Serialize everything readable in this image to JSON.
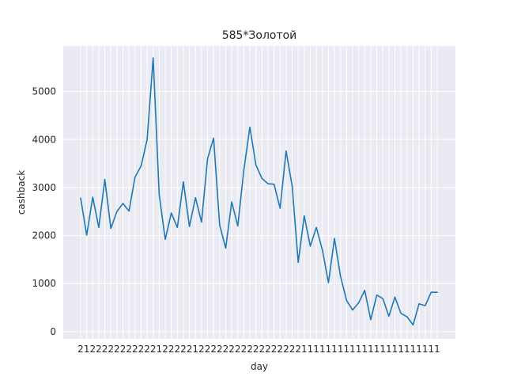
{
  "chart_data": {
    "type": "line",
    "title": "585*Золотой",
    "xlabel": "day",
    "ylabel": "cashback",
    "ylim": [
      -150,
      5950
    ],
    "yticks": [
      0,
      1000,
      2000,
      3000,
      4000,
      5000
    ],
    "grid": true,
    "series_color": "#1f77b4",
    "background_color": "#eaeaf2",
    "x": [
      "2",
      "1",
      "2",
      "2",
      "2",
      "2",
      "2",
      "2",
      "2",
      "2",
      "2",
      "2",
      "2",
      "1",
      "2",
      "2",
      "2",
      "2",
      "2",
      "1",
      "2",
      "2",
      "2",
      "2",
      "2",
      "2",
      "2",
      "2",
      "2",
      "2",
      "2",
      "2",
      "2",
      "2",
      "2",
      "2",
      "2",
      "1",
      "1",
      "1",
      "1",
      "1",
      "1",
      "1",
      "1",
      "1",
      "1",
      "1",
      "1",
      "1",
      "1",
      "1",
      "1",
      "1",
      "1",
      "1",
      "1",
      "1",
      "1",
      "1"
    ],
    "values": [
      2780,
      2010,
      2800,
      2170,
      3170,
      2150,
      2500,
      2670,
      2510,
      3220,
      3450,
      4000,
      5700,
      2850,
      1920,
      2470,
      2170,
      3120,
      2190,
      2790,
      2280,
      3600,
      4030,
      2220,
      1740,
      2700,
      2200,
      3360,
      4260,
      3470,
      3190,
      3080,
      3070,
      2570,
      3760,
      3030,
      1440,
      2410,
      1780,
      2170,
      1700,
      1020,
      1940,
      1150,
      650,
      450,
      600,
      860,
      250,
      760,
      690,
      320,
      720,
      380,
      310,
      140,
      580,
      540,
      820,
      820
    ]
  }
}
